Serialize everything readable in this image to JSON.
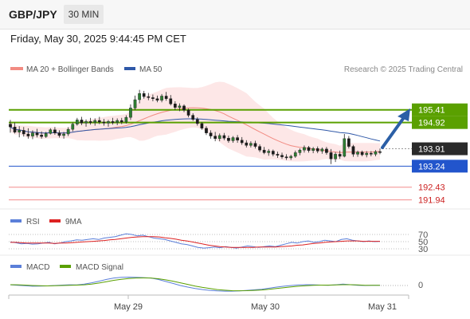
{
  "header": {
    "symbol": "GBP/JPY",
    "timeframe": "30 MIN"
  },
  "datetime": "Friday, May 30, 2025 9:44:45 PM CET",
  "legend": {
    "ma20": "MA 20 + Bollinger Bands",
    "ma50": "MA 50",
    "credit": "Research © 2025 Trading Central"
  },
  "colors": {
    "ma20": "#f28b82",
    "ma50": "#2f58a8",
    "resistance": "#5aa000",
    "support": "#2255cc",
    "pivot": "#f28b8b",
    "candle": "#2e7d32",
    "rsi": "#5b7fd9",
    "rsi9ma": "#dd2222",
    "macd": "#5b7fd9",
    "macd_signal": "#5aa000"
  },
  "chart_data": [
    {
      "type": "candlestick",
      "x_ticks": [
        "May 29",
        "May 30",
        "May 31"
      ],
      "y_ticks": [
        "195.41",
        "194.92",
        "193.91",
        "193.24",
        "192.43",
        "191.94"
      ],
      "levels": [
        {
          "value": 195.41,
          "label": "195.41",
          "kind": "resistance"
        },
        {
          "value": 194.92,
          "label": "194.92",
          "kind": "resistance"
        },
        {
          "value": 193.91,
          "label": "193.91",
          "kind": "last-price"
        },
        {
          "value": 193.24,
          "label": "193.24",
          "kind": "support"
        },
        {
          "value": 192.43,
          "label": "192.43",
          "kind": "pivot"
        },
        {
          "value": 191.94,
          "label": "191.94",
          "kind": "pivot"
        }
      ],
      "candles": [
        {
          "o": 194.86,
          "h": 195.02,
          "l": 194.53,
          "c": 194.75
        },
        {
          "o": 194.75,
          "h": 194.92,
          "l": 194.5,
          "c": 194.55
        },
        {
          "o": 194.55,
          "h": 194.78,
          "l": 194.35,
          "c": 194.62
        },
        {
          "o": 194.62,
          "h": 194.75,
          "l": 194.38,
          "c": 194.48
        },
        {
          "o": 194.48,
          "h": 194.7,
          "l": 194.3,
          "c": 194.4
        },
        {
          "o": 194.4,
          "h": 194.62,
          "l": 194.28,
          "c": 194.52
        },
        {
          "o": 194.52,
          "h": 194.68,
          "l": 194.35,
          "c": 194.44
        },
        {
          "o": 194.44,
          "h": 194.58,
          "l": 194.3,
          "c": 194.38
        },
        {
          "o": 194.38,
          "h": 194.56,
          "l": 194.33,
          "c": 194.5
        },
        {
          "o": 194.5,
          "h": 194.7,
          "l": 194.46,
          "c": 194.64
        },
        {
          "o": 194.64,
          "h": 194.75,
          "l": 194.45,
          "c": 194.52
        },
        {
          "o": 194.52,
          "h": 194.62,
          "l": 194.34,
          "c": 194.42
        },
        {
          "o": 194.42,
          "h": 194.56,
          "l": 194.3,
          "c": 194.48
        },
        {
          "o": 194.48,
          "h": 194.74,
          "l": 194.4,
          "c": 194.66
        },
        {
          "o": 194.66,
          "h": 194.92,
          "l": 194.58,
          "c": 194.86
        },
        {
          "o": 194.86,
          "h": 195.1,
          "l": 194.8,
          "c": 195.02
        },
        {
          "o": 195.02,
          "h": 195.14,
          "l": 194.82,
          "c": 194.9
        },
        {
          "o": 194.9,
          "h": 195.04,
          "l": 194.76,
          "c": 194.96
        },
        {
          "o": 194.96,
          "h": 195.1,
          "l": 194.84,
          "c": 194.92
        },
        {
          "o": 194.92,
          "h": 195.08,
          "l": 194.8,
          "c": 195.0
        },
        {
          "o": 195.0,
          "h": 195.14,
          "l": 194.86,
          "c": 194.94
        },
        {
          "o": 194.94,
          "h": 195.06,
          "l": 194.8,
          "c": 194.9
        },
        {
          "o": 194.9,
          "h": 195.02,
          "l": 194.76,
          "c": 194.96
        },
        {
          "o": 194.96,
          "h": 195.1,
          "l": 194.84,
          "c": 194.92
        },
        {
          "o": 194.92,
          "h": 195.08,
          "l": 194.82,
          "c": 195.0
        },
        {
          "o": 195.0,
          "h": 195.1,
          "l": 194.86,
          "c": 194.94
        },
        {
          "o": 194.94,
          "h": 195.2,
          "l": 194.88,
          "c": 195.12
        },
        {
          "o": 195.12,
          "h": 195.62,
          "l": 195.02,
          "c": 195.48
        },
        {
          "o": 195.48,
          "h": 195.96,
          "l": 195.4,
          "c": 195.8
        },
        {
          "o": 195.8,
          "h": 196.18,
          "l": 195.66,
          "c": 196.04
        },
        {
          "o": 196.04,
          "h": 196.14,
          "l": 195.84,
          "c": 195.92
        },
        {
          "o": 195.92,
          "h": 196.06,
          "l": 195.78,
          "c": 195.88
        },
        {
          "o": 195.88,
          "h": 196.0,
          "l": 195.74,
          "c": 195.84
        },
        {
          "o": 195.84,
          "h": 195.96,
          "l": 195.7,
          "c": 195.78
        },
        {
          "o": 195.78,
          "h": 196.02,
          "l": 195.7,
          "c": 195.94
        },
        {
          "o": 195.94,
          "h": 196.1,
          "l": 195.76,
          "c": 195.84
        },
        {
          "o": 195.84,
          "h": 195.98,
          "l": 195.58,
          "c": 195.64
        },
        {
          "o": 195.64,
          "h": 195.74,
          "l": 195.4,
          "c": 195.5
        },
        {
          "o": 195.5,
          "h": 195.66,
          "l": 195.36,
          "c": 195.56
        },
        {
          "o": 195.56,
          "h": 195.62,
          "l": 195.32,
          "c": 195.4
        },
        {
          "o": 195.4,
          "h": 195.46,
          "l": 195.12,
          "c": 195.2
        },
        {
          "o": 195.2,
          "h": 195.28,
          "l": 194.98,
          "c": 195.04
        },
        {
          "o": 195.04,
          "h": 195.12,
          "l": 194.8,
          "c": 194.88
        },
        {
          "o": 194.88,
          "h": 194.94,
          "l": 194.64,
          "c": 194.7
        },
        {
          "o": 194.7,
          "h": 194.78,
          "l": 194.44,
          "c": 194.52
        },
        {
          "o": 194.52,
          "h": 194.62,
          "l": 194.3,
          "c": 194.4
        },
        {
          "o": 194.4,
          "h": 194.56,
          "l": 194.2,
          "c": 194.3
        },
        {
          "o": 194.3,
          "h": 194.5,
          "l": 194.2,
          "c": 194.42
        },
        {
          "o": 194.42,
          "h": 194.52,
          "l": 194.24,
          "c": 194.32
        },
        {
          "o": 194.32,
          "h": 194.42,
          "l": 194.14,
          "c": 194.22
        },
        {
          "o": 194.22,
          "h": 194.4,
          "l": 194.14,
          "c": 194.34
        },
        {
          "o": 194.34,
          "h": 194.44,
          "l": 194.14,
          "c": 194.24
        },
        {
          "o": 194.24,
          "h": 194.36,
          "l": 194.06,
          "c": 194.14
        },
        {
          "o": 194.14,
          "h": 194.24,
          "l": 193.96,
          "c": 194.04
        },
        {
          "o": 194.04,
          "h": 194.2,
          "l": 193.96,
          "c": 194.12
        },
        {
          "o": 194.12,
          "h": 194.22,
          "l": 193.92,
          "c": 194.0
        },
        {
          "o": 194.0,
          "h": 194.08,
          "l": 193.78,
          "c": 193.86
        },
        {
          "o": 193.86,
          "h": 193.98,
          "l": 193.7,
          "c": 193.76
        },
        {
          "o": 193.76,
          "h": 193.9,
          "l": 193.64,
          "c": 193.82
        },
        {
          "o": 193.82,
          "h": 193.88,
          "l": 193.62,
          "c": 193.7
        },
        {
          "o": 193.7,
          "h": 193.8,
          "l": 193.56,
          "c": 193.66
        },
        {
          "o": 193.66,
          "h": 193.76,
          "l": 193.52,
          "c": 193.6
        },
        {
          "o": 193.6,
          "h": 193.7,
          "l": 193.48,
          "c": 193.56
        },
        {
          "o": 193.56,
          "h": 193.68,
          "l": 193.48,
          "c": 193.62
        },
        {
          "o": 193.62,
          "h": 193.84,
          "l": 193.56,
          "c": 193.76
        },
        {
          "o": 193.76,
          "h": 193.92,
          "l": 193.66,
          "c": 193.86
        },
        {
          "o": 193.86,
          "h": 194.04,
          "l": 193.76,
          "c": 193.96
        },
        {
          "o": 193.96,
          "h": 194.02,
          "l": 193.76,
          "c": 193.84
        },
        {
          "o": 193.84,
          "h": 193.98,
          "l": 193.74,
          "c": 193.92
        },
        {
          "o": 193.92,
          "h": 194.0,
          "l": 193.74,
          "c": 193.82
        },
        {
          "o": 193.82,
          "h": 193.96,
          "l": 193.72,
          "c": 193.9
        },
        {
          "o": 193.9,
          "h": 193.98,
          "l": 193.68,
          "c": 193.76
        },
        {
          "o": 193.76,
          "h": 193.9,
          "l": 193.32,
          "c": 193.52
        },
        {
          "o": 193.52,
          "h": 193.78,
          "l": 193.4,
          "c": 193.7
        },
        {
          "o": 193.7,
          "h": 193.84,
          "l": 193.52,
          "c": 193.62
        },
        {
          "o": 193.62,
          "h": 194.48,
          "l": 193.58,
          "c": 194.3
        },
        {
          "o": 194.3,
          "h": 194.4,
          "l": 193.92,
          "c": 194.0
        },
        {
          "o": 194.0,
          "h": 194.06,
          "l": 193.6,
          "c": 193.7
        },
        {
          "o": 193.7,
          "h": 193.84,
          "l": 193.6,
          "c": 193.78
        },
        {
          "o": 193.78,
          "h": 193.84,
          "l": 193.62,
          "c": 193.68
        },
        {
          "o": 193.68,
          "h": 193.82,
          "l": 193.58,
          "c": 193.74
        },
        {
          "o": 193.74,
          "h": 193.82,
          "l": 193.62,
          "c": 193.7
        },
        {
          "o": 193.7,
          "h": 193.86,
          "l": 193.62,
          "c": 193.8
        },
        {
          "o": 193.8,
          "h": 193.92,
          "l": 193.7,
          "c": 193.78
        }
      ]
    },
    {
      "type": "line",
      "legend": [
        "RSI",
        "9MA"
      ],
      "y_ticks": [
        "70",
        "50",
        "30"
      ],
      "ylim": [
        30,
        70
      ],
      "series": [
        {
          "name": "RSI",
          "values": [
            49,
            47,
            44,
            45,
            43,
            44,
            46,
            48,
            44,
            46,
            50,
            52,
            55,
            54,
            56,
            58,
            56,
            60,
            62,
            64,
            68,
            72,
            70,
            66,
            68,
            64,
            60,
            58,
            56,
            52,
            48,
            44,
            42,
            38,
            34,
            32,
            33,
            35,
            33,
            36,
            34,
            32,
            35,
            38,
            36,
            34,
            36,
            38,
            36,
            40,
            44,
            48,
            46,
            50,
            52,
            48,
            50,
            54,
            52,
            50,
            56,
            58,
            54,
            52,
            50,
            52,
            50,
            51
          ]
        },
        {
          "name": "9MA",
          "values": [
            48,
            48,
            47,
            46,
            46,
            46,
            46,
            46,
            45,
            46,
            46,
            47,
            48,
            49,
            50,
            51,
            52,
            53,
            55,
            56,
            58,
            60,
            62,
            63,
            64,
            64,
            64,
            63,
            61,
            59,
            57,
            54,
            52,
            49,
            46,
            43,
            40,
            38,
            36,
            35,
            34,
            34,
            34,
            34,
            34,
            35,
            35,
            35,
            35,
            36,
            37,
            38,
            40,
            41,
            43,
            45,
            46,
            48,
            49,
            50,
            51,
            52,
            52,
            52,
            51,
            51,
            51,
            51
          ]
        }
      ]
    },
    {
      "type": "line",
      "legend": [
        "MACD",
        "MACD Signal"
      ],
      "y_ticks": [
        "0"
      ],
      "ylim": [
        -1,
        1
      ],
      "series": [
        {
          "name": "MACD",
          "values": [
            0.05,
            0.02,
            -0.02,
            -0.05,
            -0.04,
            -0.03,
            0.0,
            0.03,
            0.05,
            0.04,
            0.1,
            0.2,
            0.32,
            0.45,
            0.55,
            0.6,
            0.62,
            0.6,
            0.58,
            0.55,
            0.45,
            0.3,
            0.15,
            0.0,
            -0.12,
            -0.22,
            -0.3,
            -0.36,
            -0.4,
            -0.42,
            -0.42,
            -0.4,
            -0.36,
            -0.32,
            -0.28,
            -0.2,
            -0.12,
            -0.05,
            0.0,
            0.04,
            0.06,
            0.05,
            0.03,
            0.02,
            0.05,
            0.1,
            0.06,
            0.02,
            0.0,
            0.01,
            0.02
          ]
        },
        {
          "name": "MACD Signal",
          "values": [
            0.06,
            0.05,
            0.03,
            0.0,
            -0.02,
            -0.03,
            -0.02,
            0.0,
            0.02,
            0.03,
            0.05,
            0.1,
            0.18,
            0.28,
            0.38,
            0.46,
            0.52,
            0.55,
            0.56,
            0.55,
            0.5,
            0.42,
            0.32,
            0.2,
            0.08,
            -0.04,
            -0.14,
            -0.22,
            -0.3,
            -0.35,
            -0.38,
            -0.39,
            -0.38,
            -0.36,
            -0.33,
            -0.28,
            -0.22,
            -0.16,
            -0.1,
            -0.05,
            -0.01,
            0.02,
            0.03,
            0.03,
            0.04,
            0.06,
            0.06,
            0.04,
            0.02,
            0.01,
            0.01
          ]
        }
      ]
    }
  ]
}
